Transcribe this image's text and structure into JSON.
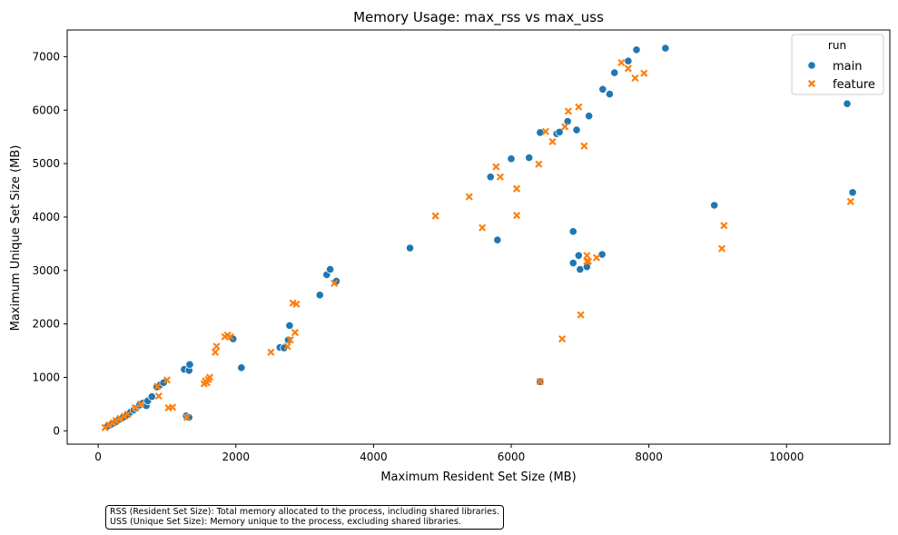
{
  "chart_data": {
    "type": "scatter",
    "title": "Memory Usage: max_rss vs max_uss",
    "xlabel": "Maximum Resident Set Size (MB)",
    "ylabel": "Maximum Unique Set Size (MB)",
    "xlim": [
      -450,
      11500
    ],
    "ylim": [
      -250,
      7500
    ],
    "xticks": [
      0,
      2000,
      4000,
      6000,
      8000,
      10000
    ],
    "yticks": [
      0,
      1000,
      2000,
      3000,
      4000,
      5000,
      6000,
      7000
    ],
    "grid": false,
    "legend": {
      "title": "run",
      "placement": "top-right"
    },
    "series": [
      {
        "name": "main",
        "marker": "circle",
        "color": "#1f77b4",
        "points": [
          [
            140,
            90
          ],
          [
            200,
            130
          ],
          [
            260,
            170
          ],
          [
            300,
            210
          ],
          [
            360,
            250
          ],
          [
            420,
            300
          ],
          [
            470,
            350
          ],
          [
            520,
            390
          ],
          [
            560,
            430
          ],
          [
            600,
            480
          ],
          [
            650,
            520
          ],
          [
            700,
            470
          ],
          [
            720,
            560
          ],
          [
            780,
            640
          ],
          [
            850,
            820
          ],
          [
            900,
            860
          ],
          [
            950,
            900
          ],
          [
            1250,
            1150
          ],
          [
            1320,
            1130
          ],
          [
            1330,
            1240
          ],
          [
            1280,
            280
          ],
          [
            1320,
            250
          ],
          [
            1960,
            1720
          ],
          [
            2080,
            1180
          ],
          [
            2640,
            1560
          ],
          [
            2700,
            1550
          ],
          [
            2760,
            1700
          ],
          [
            2780,
            1970
          ],
          [
            3220,
            2540
          ],
          [
            3320,
            2920
          ],
          [
            3370,
            3020
          ],
          [
            3460,
            2800
          ],
          [
            4530,
            3420
          ],
          [
            5700,
            4750
          ],
          [
            5800,
            3570
          ],
          [
            6000,
            5090
          ],
          [
            6260,
            5110
          ],
          [
            6420,
            5580
          ],
          [
            6420,
            920
          ],
          [
            6660,
            5560
          ],
          [
            6700,
            5590
          ],
          [
            6820,
            5790
          ],
          [
            6900,
            3730
          ],
          [
            6900,
            3140
          ],
          [
            6950,
            5630
          ],
          [
            6980,
            3280
          ],
          [
            7000,
            3020
          ],
          [
            7100,
            3070
          ],
          [
            7130,
            5890
          ],
          [
            7320,
            3300
          ],
          [
            7330,
            6390
          ],
          [
            7430,
            6300
          ],
          [
            7500,
            6700
          ],
          [
            7700,
            6920
          ],
          [
            7820,
            7130
          ],
          [
            8240,
            7160
          ],
          [
            8950,
            4220
          ],
          [
            10880,
            6120
          ],
          [
            10960,
            4460
          ]
        ]
      },
      {
        "name": "feature",
        "marker": "x",
        "color": "#ff7f0e",
        "points": [
          [
            100,
            60
          ],
          [
            160,
            110
          ],
          [
            220,
            150
          ],
          [
            260,
            190
          ],
          [
            320,
            230
          ],
          [
            380,
            270
          ],
          [
            430,
            310
          ],
          [
            540,
            430
          ],
          [
            620,
            500
          ],
          [
            860,
            830
          ],
          [
            880,
            650
          ],
          [
            1000,
            950
          ],
          [
            1020,
            430
          ],
          [
            1080,
            440
          ],
          [
            1290,
            250
          ],
          [
            1540,
            880
          ],
          [
            1560,
            930
          ],
          [
            1580,
            900
          ],
          [
            1600,
            960
          ],
          [
            1620,
            1000
          ],
          [
            1700,
            1470
          ],
          [
            1720,
            1580
          ],
          [
            1840,
            1760
          ],
          [
            1880,
            1790
          ],
          [
            1920,
            1760
          ],
          [
            2510,
            1470
          ],
          [
            2750,
            1580
          ],
          [
            2790,
            1700
          ],
          [
            2830,
            2390
          ],
          [
            2860,
            1840
          ],
          [
            2880,
            2370
          ],
          [
            3430,
            2760
          ],
          [
            4900,
            4020
          ],
          [
            5390,
            4380
          ],
          [
            5580,
            3800
          ],
          [
            5780,
            4940
          ],
          [
            5840,
            4750
          ],
          [
            6080,
            4030
          ],
          [
            6080,
            4530
          ],
          [
            6400,
            4990
          ],
          [
            6420,
            920
          ],
          [
            6500,
            5600
          ],
          [
            6600,
            5410
          ],
          [
            6740,
            1720
          ],
          [
            6780,
            5690
          ],
          [
            6830,
            5980
          ],
          [
            6980,
            6060
          ],
          [
            7010,
            2170
          ],
          [
            7060,
            5330
          ],
          [
            7100,
            3280
          ],
          [
            7100,
            3170
          ],
          [
            7120,
            3170
          ],
          [
            7240,
            3240
          ],
          [
            7600,
            6890
          ],
          [
            7700,
            6780
          ],
          [
            7800,
            6600
          ],
          [
            7930,
            6690
          ],
          [
            9060,
            3410
          ],
          [
            9090,
            3840
          ],
          [
            10930,
            4290
          ]
        ]
      }
    ]
  },
  "note": {
    "line1": "RSS (Resident Set Size): Total memory allocated to the process, including shared libraries.",
    "line2": "USS (Unique Set Size): Memory unique to the process, excluding shared libraries."
  }
}
